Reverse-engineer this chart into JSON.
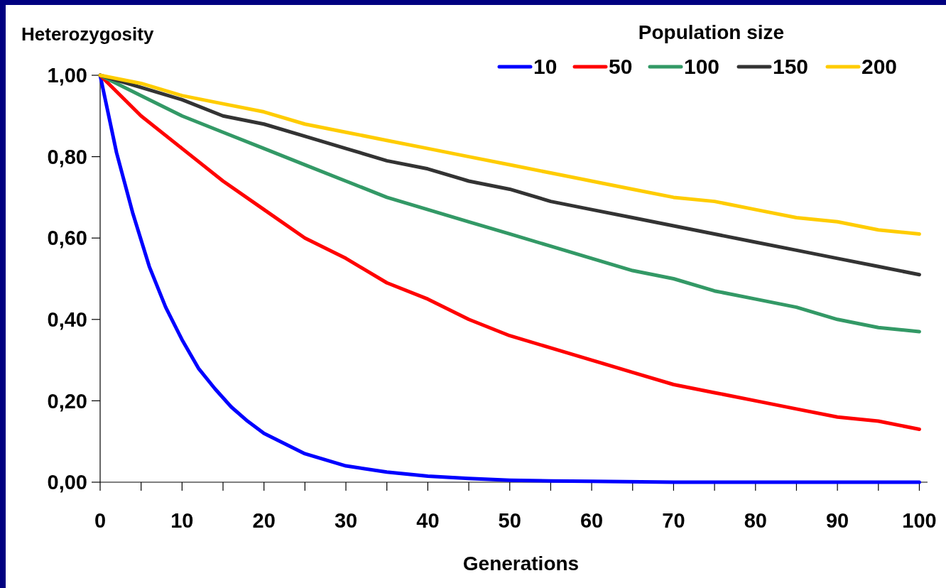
{
  "chart_data": {
    "type": "line",
    "xlabel": "Generations",
    "ylabel": "Heterozygosity",
    "legend_title": "Population size",
    "legend": "top right",
    "grid": false,
    "marker": "none",
    "line_style": "solid",
    "xlim": [
      0,
      101
    ],
    "ylim": [
      0,
      1
    ],
    "xticks": [
      0,
      {
        "value": 5,
        "label": null
      },
      10,
      {
        "value": 15,
        "label": null
      },
      20,
      {
        "value": 25,
        "label": null
      },
      30,
      {
        "value": 35,
        "label": null
      },
      40,
      {
        "value": 45,
        "label": null
      },
      50,
      {
        "value": 55,
        "label": null
      },
      60,
      {
        "value": 65,
        "label": null
      },
      70,
      {
        "value": 75,
        "label": null
      },
      80,
      {
        "value": 85,
        "label": null
      },
      90,
      {
        "value": 95,
        "label": null
      },
      100
    ],
    "yticks": [
      {
        "value": 0,
        "label": "0,00"
      },
      {
        "value": 0.2,
        "label": "0,20"
      },
      {
        "value": 0.4,
        "label": "0,40"
      },
      {
        "value": 0.6,
        "label": "0,60"
      },
      {
        "value": 0.8,
        "label": "0,80"
      },
      {
        "value": 1,
        "label": "1,00"
      }
    ],
    "series": [
      {
        "name": "10",
        "color": "#0000ff",
        "x": [
          0,
          2,
          4,
          6,
          8,
          10,
          12,
          14,
          16,
          18,
          20,
          25,
          30,
          35,
          40,
          45,
          50,
          55,
          60,
          70,
          80,
          90,
          100
        ],
        "values": [
          1,
          0.81,
          0.66,
          0.53,
          0.43,
          0.35,
          0.28,
          0.23,
          0.185,
          0.15,
          0.12,
          0.07,
          0.04,
          0.025,
          0.015,
          0.009,
          0.005,
          0.003,
          0.002,
          0,
          0,
          0,
          0
        ]
      },
      {
        "name": "50",
        "color": "#ff0000",
        "x": [
          0,
          5,
          10,
          15,
          20,
          25,
          30,
          35,
          40,
          45,
          50,
          55,
          60,
          65,
          70,
          75,
          80,
          85,
          90,
          95,
          100
        ],
        "values": [
          1,
          0.9,
          0.82,
          0.74,
          0.67,
          0.6,
          0.55,
          0.49,
          0.45,
          0.4,
          0.36,
          0.33,
          0.3,
          0.27,
          0.24,
          0.22,
          0.2,
          0.18,
          0.16,
          0.15,
          0.13
        ]
      },
      {
        "name": "100",
        "color": "#339966",
        "x": [
          0,
          5,
          10,
          15,
          20,
          25,
          30,
          35,
          40,
          45,
          50,
          55,
          60,
          65,
          70,
          75,
          80,
          85,
          90,
          95,
          100
        ],
        "values": [
          1,
          0.95,
          0.9,
          0.86,
          0.82,
          0.78,
          0.74,
          0.7,
          0.67,
          0.64,
          0.61,
          0.58,
          0.55,
          0.52,
          0.5,
          0.47,
          0.45,
          0.43,
          0.4,
          0.38,
          0.37
        ]
      },
      {
        "name": "150",
        "color": "#333333",
        "x": [
          0,
          5,
          10,
          15,
          20,
          25,
          30,
          35,
          40,
          45,
          50,
          55,
          60,
          65,
          70,
          75,
          80,
          85,
          90,
          95,
          100
        ],
        "values": [
          1,
          0.97,
          0.94,
          0.9,
          0.88,
          0.85,
          0.82,
          0.79,
          0.77,
          0.74,
          0.72,
          0.69,
          0.67,
          0.65,
          0.63,
          0.61,
          0.59,
          0.57,
          0.55,
          0.53,
          0.51
        ]
      },
      {
        "name": "200",
        "color": "#ffcc00",
        "x": [
          0,
          5,
          10,
          15,
          20,
          25,
          30,
          35,
          40,
          45,
          50,
          55,
          60,
          65,
          70,
          75,
          80,
          85,
          90,
          95,
          100
        ],
        "values": [
          1,
          0.98,
          0.95,
          0.93,
          0.91,
          0.88,
          0.86,
          0.84,
          0.82,
          0.8,
          0.78,
          0.76,
          0.74,
          0.72,
          0.7,
          0.69,
          0.67,
          0.65,
          0.64,
          0.62,
          0.61
        ]
      }
    ]
  }
}
